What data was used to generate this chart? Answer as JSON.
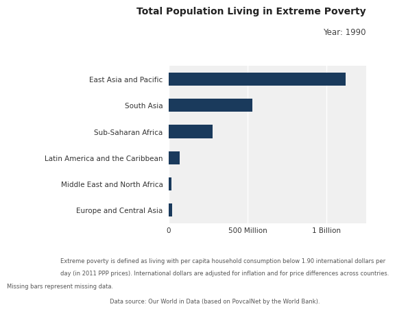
{
  "title": "Total Population Living in Extreme Poverty",
  "subtitle": "Year: 1990",
  "categories": [
    "East Asia and Pacific",
    "South Asia",
    "Sub-Saharan Africa",
    "Latin America and the Caribbean",
    "Middle East and North Africa",
    "Europe and Central Asia"
  ],
  "values": [
    1120000000,
    530000000,
    280000000,
    70000000,
    18000000,
    20000000
  ],
  "bar_color": "#1a3a5c",
  "background_color": "#ffffff",
  "plot_bg_color": "#f0f0f0",
  "xlim": [
    0,
    1250000000
  ],
  "xticks": [
    0,
    500000000,
    1000000000
  ],
  "xtick_labels": [
    "0",
    "500 Million",
    "1 Billion"
  ],
  "footnote1_line1": "Extreme poverty is defined as living with per capita household consumption below 1.90 international dollars per",
  "footnote1_line2": "day (in 2011 PPP prices). International dollars are adjusted for inflation and for price differences across countries.",
  "footnote1_line3": "Missing bars represent missing data.",
  "footnote2": "Data source: Our World in Data (based on PovcalNet by the World Bank).",
  "title_fontsize": 10,
  "subtitle_fontsize": 8.5,
  "label_fontsize": 7.5,
  "tick_fontsize": 7.5,
  "footnote_fontsize": 6.0
}
